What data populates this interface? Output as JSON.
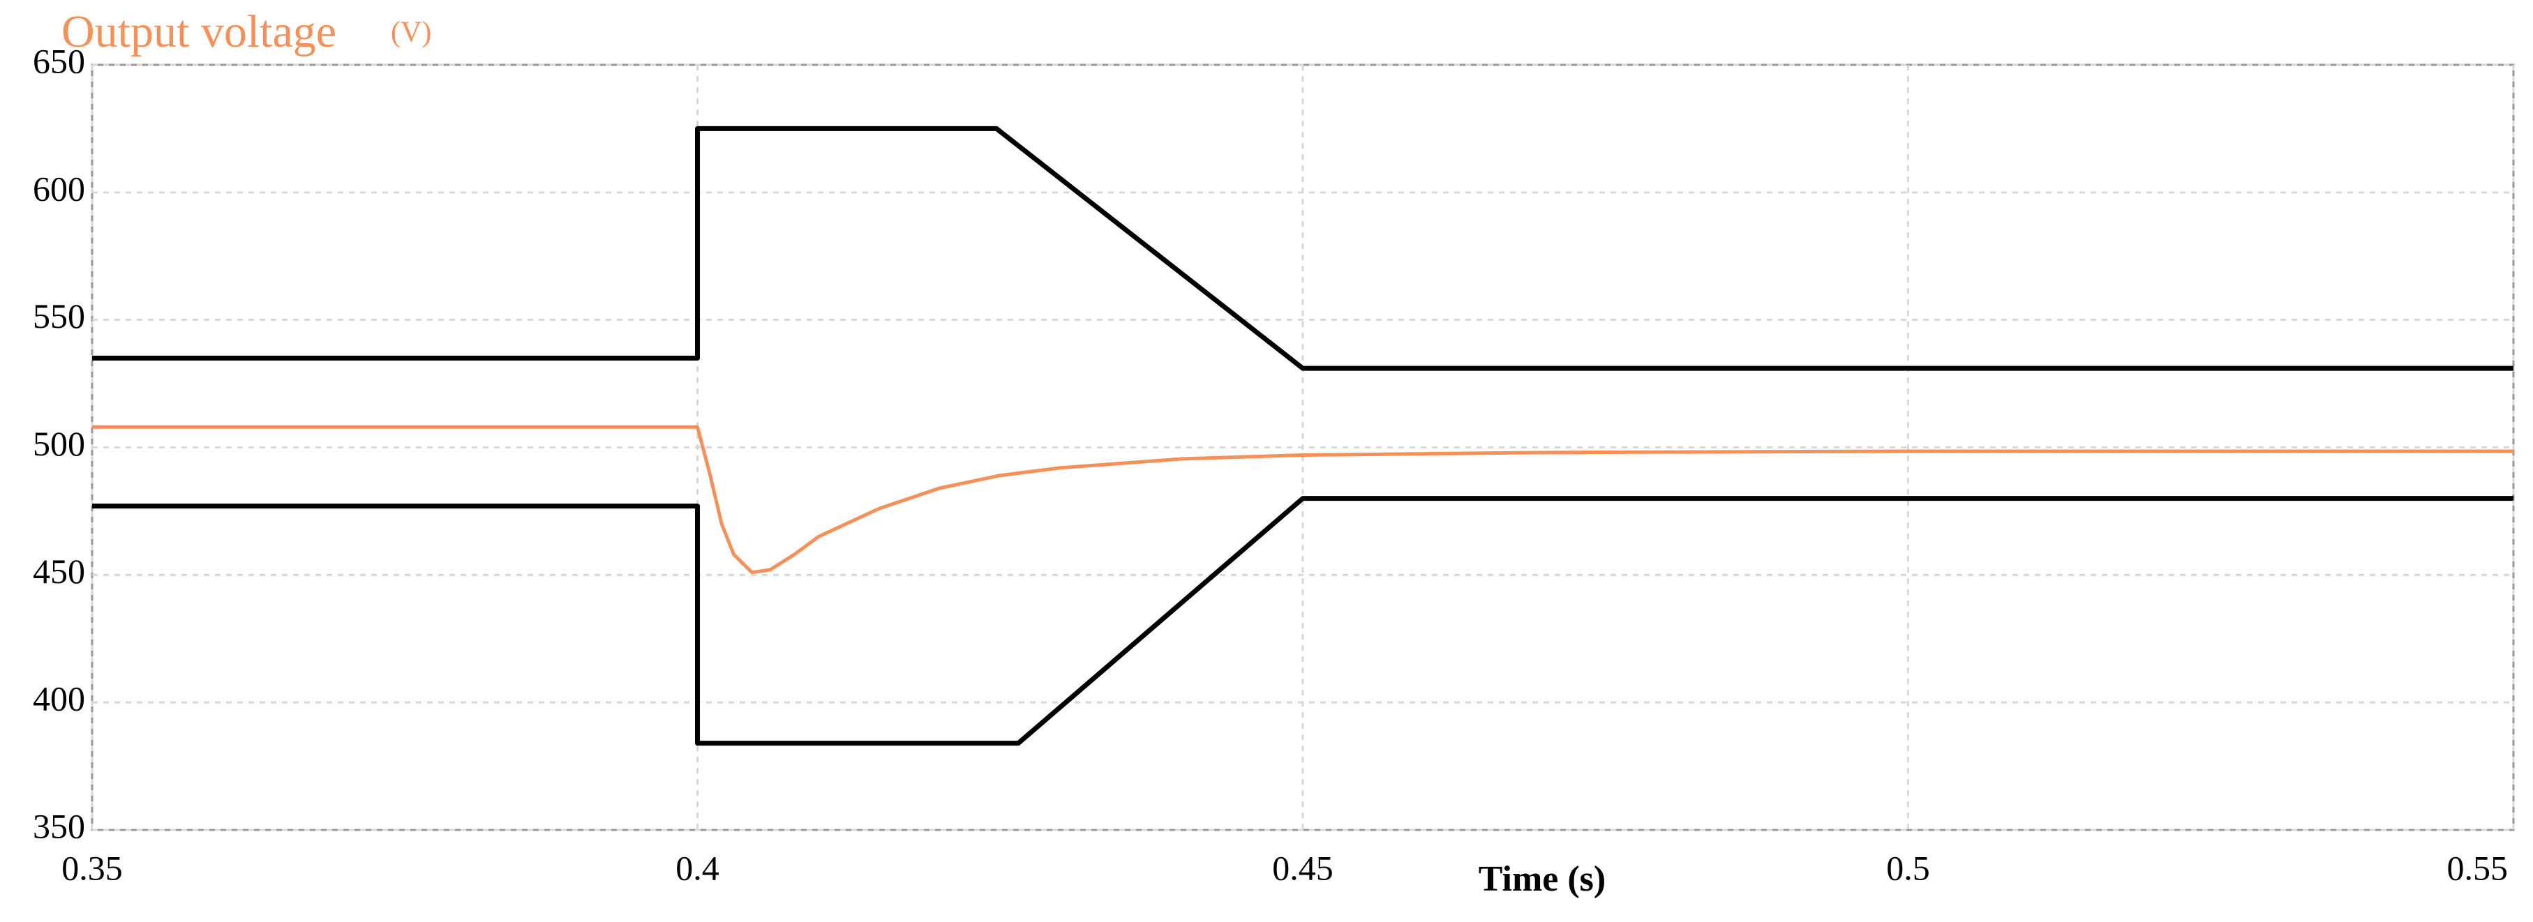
{
  "chart_data": {
    "type": "line",
    "title": "Output voltage",
    "y_unit": "(V)",
    "x_label": "Time (s)",
    "xlim": [
      0.35,
      0.55
    ],
    "xticks": [
      0.35,
      0.4,
      0.45,
      0.5,
      0.55
    ],
    "ylim": [
      350,
      650
    ],
    "yticks": [
      350,
      400,
      450,
      500,
      550,
      600,
      650
    ],
    "grid": true,
    "series": [
      {
        "color": "#000000",
        "x": [
          0.35,
          0.4,
          0.4,
          0.4247,
          0.45,
          0.55
        ],
        "values": [
          535,
          535,
          625,
          625,
          531,
          531
        ]
      },
      {
        "color": "#000000",
        "x": [
          0.35,
          0.4,
          0.4,
          0.4265,
          0.45,
          0.55
        ],
        "values": [
          477,
          477,
          384,
          384,
          480,
          480
        ]
      },
      {
        "name": "Output voltage",
        "color": "#f4915a",
        "x": [
          0.35,
          0.4,
          0.401,
          0.402,
          0.403,
          0.4045,
          0.406,
          0.408,
          0.41,
          0.415,
          0.42,
          0.425,
          0.43,
          0.44,
          0.45,
          0.47,
          0.5,
          0.55
        ],
        "values": [
          508,
          508,
          490,
          470,
          458,
          451,
          452,
          458,
          465,
          476,
          484,
          489,
          492,
          495.5,
          497,
          498,
          498.5,
          498.5
        ]
      }
    ]
  }
}
